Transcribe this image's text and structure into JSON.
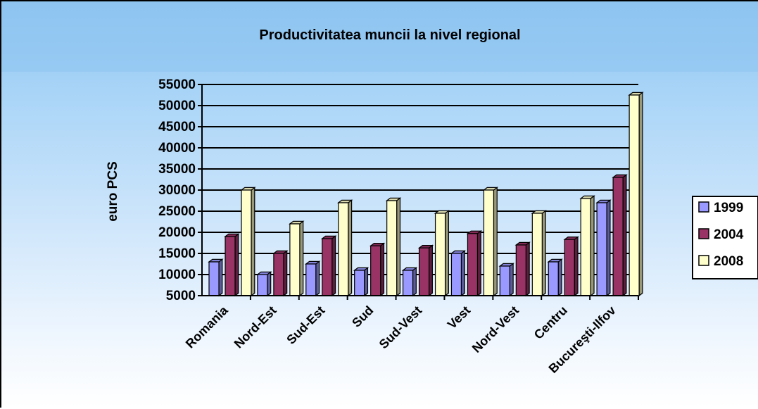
{
  "chart_data": {
    "type": "bar",
    "title": "Productivitatea muncii la nivel regional",
    "xlabel": "",
    "ylabel": "euro PCS",
    "ylim": [
      5000,
      55000
    ],
    "yticks": [
      "55000",
      "50000",
      "45000",
      "40000",
      "35000",
      "30000",
      "25000",
      "20000",
      "15000",
      "10000",
      "5000"
    ],
    "grid": true,
    "legend_position": "right",
    "categories": [
      "Romania",
      "Nord-Est",
      "Sud-Est",
      "Sud",
      "Sud-Vest",
      "Vest",
      "Nord-Vest",
      "Centru",
      "Bucureşti-Ilfov"
    ],
    "series": [
      {
        "name": "1999",
        "color": "#9999ff",
        "values": [
          13000,
          10000,
          12500,
          11000,
          11000,
          15000,
          12000,
          13000,
          27000
        ]
      },
      {
        "name": "2004",
        "color": "#993366",
        "values": [
          19000,
          15000,
          18500,
          16800,
          16300,
          19700,
          17000,
          18300,
          33000
        ]
      },
      {
        "name": "2008",
        "color": "#ffffcc",
        "values": [
          30000,
          22000,
          27000,
          27500,
          24500,
          30000,
          24500,
          28000,
          52500
        ]
      }
    ]
  }
}
